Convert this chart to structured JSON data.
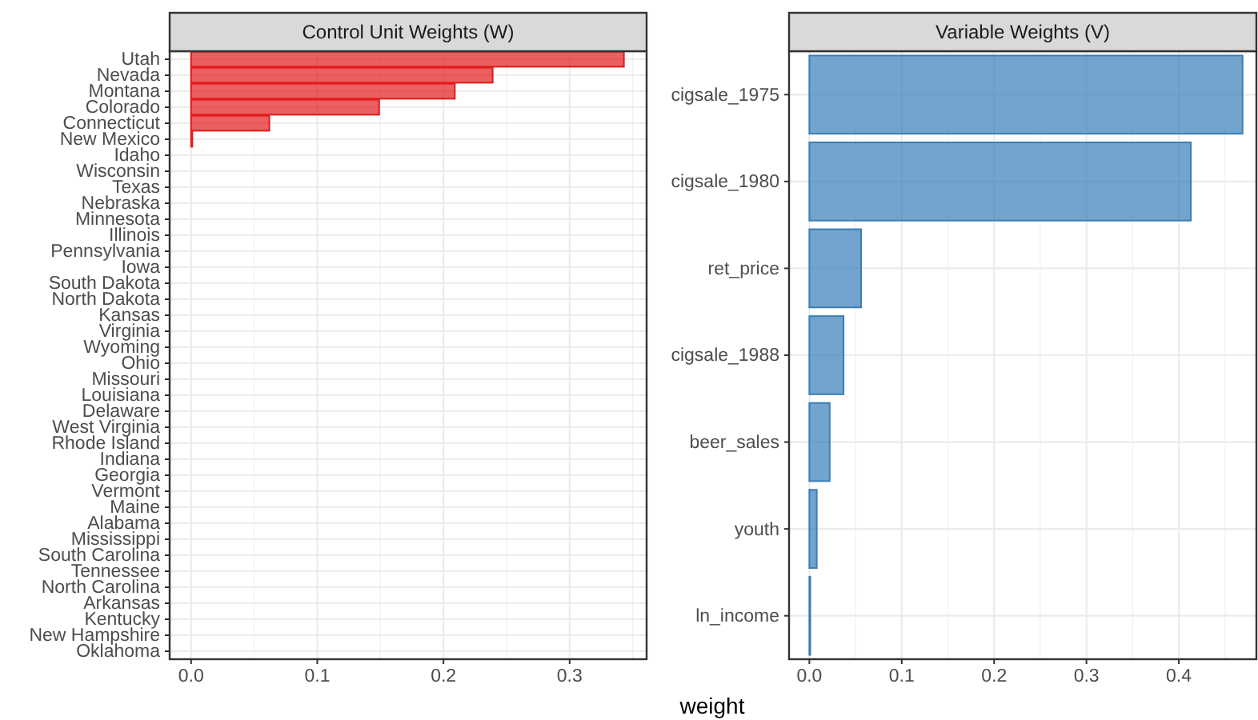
{
  "chart_data": [
    {
      "type": "bar",
      "orientation": "horizontal",
      "title": "Control Unit Weights (W)",
      "xlabel": "weight",
      "categories": [
        "Utah",
        "Nevada",
        "Montana",
        "Colorado",
        "Connecticut",
        "New Mexico",
        "Idaho",
        "Wisconsin",
        "Texas",
        "Nebraska",
        "Minnesota",
        "Illinois",
        "Pennsylvania",
        "Iowa",
        "South Dakota",
        "North Dakota",
        "Kansas",
        "Virginia",
        "Wyoming",
        "Ohio",
        "Missouri",
        "Louisiana",
        "Delaware",
        "West Virginia",
        "Rhode Island",
        "Indiana",
        "Georgia",
        "Vermont",
        "Maine",
        "Alabama",
        "Mississippi",
        "South Carolina",
        "Tennessee",
        "North Carolina",
        "Arkansas",
        "Kentucky",
        "New Hampshire",
        "Oklahoma"
      ],
      "values": [
        0.343,
        0.239,
        0.209,
        0.149,
        0.062,
        0.001,
        0,
        0,
        0,
        0,
        0,
        0,
        0,
        0,
        0,
        0,
        0,
        0,
        0,
        0,
        0,
        0,
        0,
        0,
        0,
        0,
        0,
        0,
        0,
        0,
        0,
        0,
        0,
        0,
        0,
        0,
        0,
        0
      ],
      "color": "#e41a1c",
      "xlim": [
        -0.017,
        0.361
      ],
      "xticks": [
        {
          "value": 0,
          "label": "0.0"
        },
        0.1,
        0.2,
        0.3
      ],
      "grid": true
    },
    {
      "type": "bar",
      "orientation": "horizontal",
      "title": "Variable Weights (V)",
      "categories": [
        "cigsale_1975",
        "cigsale_1980",
        "ret_price",
        "cigsale_1988",
        "beer_sales",
        "youth",
        "ln_income"
      ],
      "values": [
        0.469,
        0.413,
        0.056,
        0.037,
        0.022,
        0.008,
        0.001
      ],
      "color": "#377eb8",
      "xlim": [
        -0.022,
        0.484
      ],
      "xticks": [
        {
          "value": 0,
          "label": "0.0"
        },
        0.1,
        0.2,
        0.3,
        0.4
      ],
      "grid": true
    }
  ]
}
